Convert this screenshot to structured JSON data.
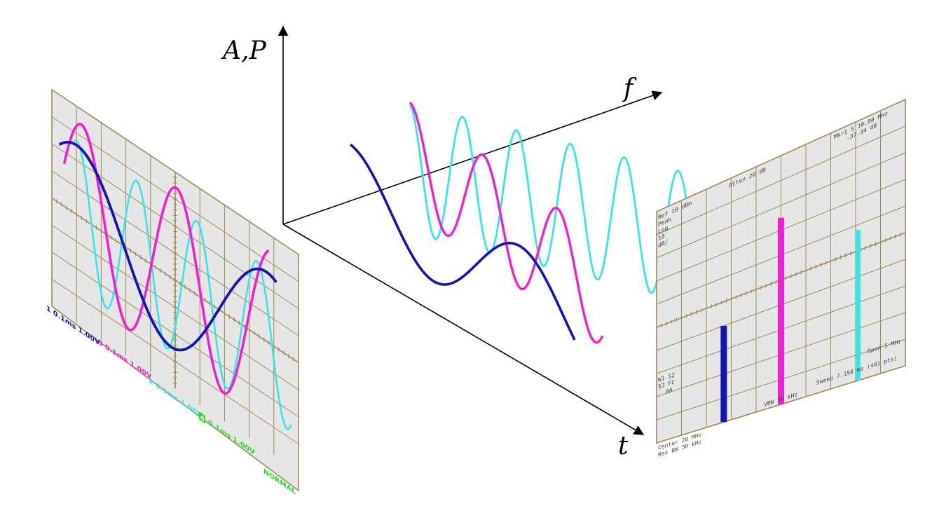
{
  "axes": {
    "vertical_label": "A,P",
    "frequency_label": "f",
    "time_label": "t"
  },
  "colors": {
    "ch1": "#1414b4",
    "ch3": "#f020d0",
    "ch2": "#38e4e8",
    "ch4": "#22dd22",
    "grid": "#9c8a56",
    "screen": "#e6e6e6"
  },
  "oscilloscope": {
    "ch1_label": "1 0.1ms 1.00V",
    "ch3_label": "3 0.1ms 1.00V",
    "ch2_label": "2 0.1ms 1.00V",
    "ch4_number": "4",
    "ch4_label": "0.1ms 1.00V",
    "mode": "NORMAL"
  },
  "spectrum": {
    "marker_line1": "Mkr1 5 10.00 MHz",
    "marker_line2": "-37.34 dB",
    "atten": "Atten 20 dB",
    "ref": "Ref 10 dBm",
    "peak": "Peak",
    "log": "Log",
    "scale_value": "10",
    "scale_unit": "dB/",
    "w1s2": "W1 S2",
    "s3fc": "S3 FC",
    "aa": "AA",
    "center": "Center 20 MHz",
    "res_bw": "Res BW 30 kHz",
    "vbw": "VBW 30 kHz",
    "sweep": "Sweep 7.158 ms (401 pts)",
    "span": "Span 5 MHz"
  }
}
